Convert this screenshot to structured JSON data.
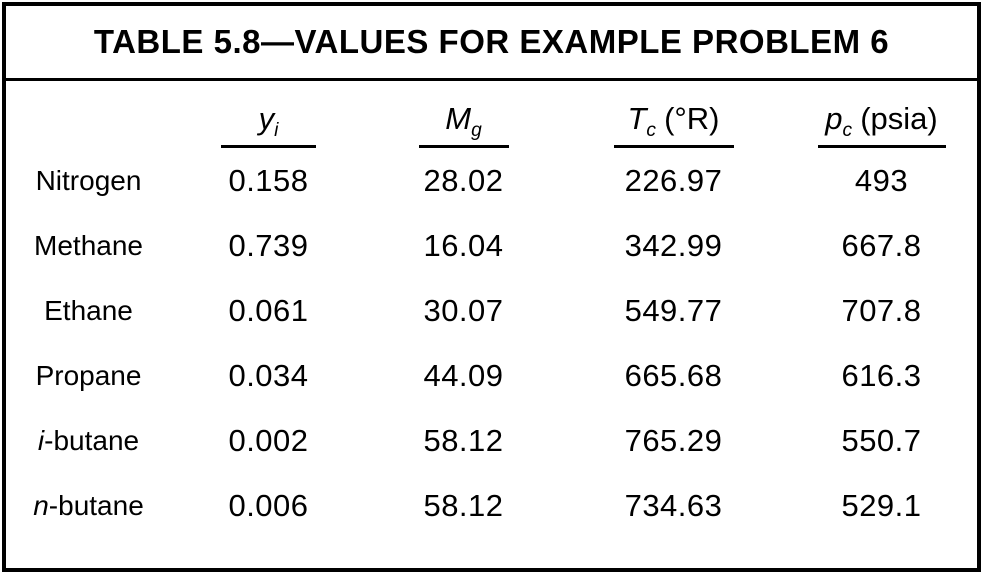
{
  "title": "TABLE 5.8—VALUES FOR EXAMPLE PROBLEM 6",
  "table": {
    "columns": [
      {
        "symbol": "y",
        "subscript": "i",
        "unit": ""
      },
      {
        "symbol": "M",
        "subscript": "g",
        "unit": ""
      },
      {
        "symbol": "T",
        "subscript": "c",
        "unit": "(°R)"
      },
      {
        "symbol": "p",
        "subscript": "c",
        "unit": "(psia)"
      }
    ],
    "rows": [
      {
        "name_italic": "",
        "name": "Nitrogen",
        "y_i": "0.158",
        "M_g": "28.02",
        "T_c": "226.97",
        "p_c": "493"
      },
      {
        "name_italic": "",
        "name": "Methane",
        "y_i": "0.739",
        "M_g": "16.04",
        "T_c": "342.99",
        "p_c": "667.8"
      },
      {
        "name_italic": "",
        "name": "Ethane",
        "y_i": "0.061",
        "M_g": "30.07",
        "T_c": "549.77",
        "p_c": "707.8"
      },
      {
        "name_italic": "",
        "name": "Propane",
        "y_i": "0.034",
        "M_g": "44.09",
        "T_c": "665.68",
        "p_c": "616.3"
      },
      {
        "name_italic": "i",
        "name": "-butane",
        "y_i": "0.002",
        "M_g": "58.12",
        "T_c": "765.29",
        "p_c": "550.7"
      },
      {
        "name_italic": "n",
        "name": "-butane",
        "y_i": "0.006",
        "M_g": "58.12",
        "T_c": "734.63",
        "p_c": "529.1"
      }
    ]
  }
}
